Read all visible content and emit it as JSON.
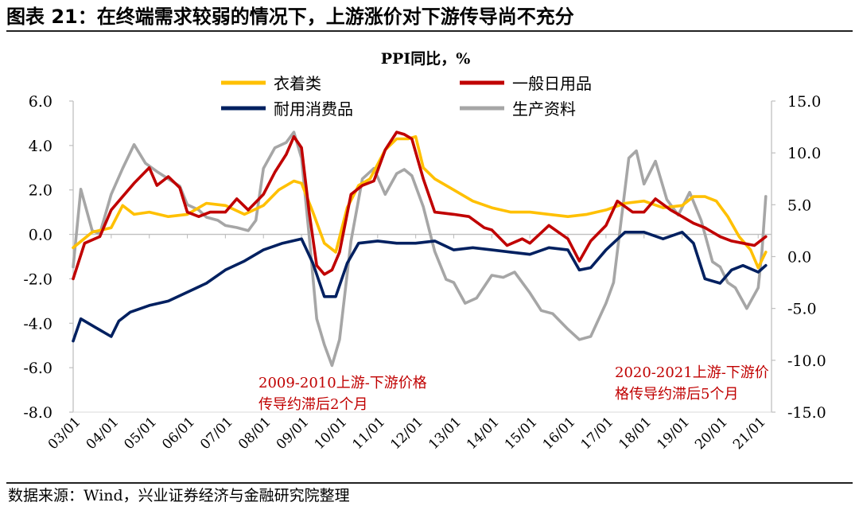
{
  "header": {
    "title": "图表 21：在终端需求较弱的情况下，上游涨价对下游传导尚不充分"
  },
  "footer": {
    "source": "数据来源：Wind，兴业证券经济与金融研究院整理"
  },
  "chart_data": {
    "type": "line",
    "title": "PPI同比，%",
    "x_ticks": [
      "03/01",
      "04/01",
      "05/01",
      "06/01",
      "07/01",
      "08/01",
      "09/01",
      "10/01",
      "11/01",
      "12/01",
      "13/01",
      "14/01",
      "15/01",
      "16/01",
      "17/01",
      "18/01",
      "19/01",
      "20/01",
      "21/01"
    ],
    "y_left": {
      "ticks": [
        "6.0",
        "4.0",
        "2.0",
        "0.0",
        "-2.0",
        "-4.0",
        "-6.0",
        "-8.0"
      ],
      "ylim": [
        -8,
        6
      ]
    },
    "y_right": {
      "ticks": [
        "15.0",
        "10.0",
        "5.0",
        "0.0",
        "-5.0",
        "-10.0",
        "-15.0"
      ],
      "ylim": [
        -15,
        15
      ]
    },
    "legend": [
      {
        "name": "衣着类",
        "color": "#FFC000"
      },
      {
        "name": "一般日用品",
        "color": "#C00000"
      },
      {
        "name": "耐用消费品",
        "color": "#002060"
      },
      {
        "name": "生产资料",
        "color": "#A6A6A6"
      }
    ],
    "annotations": [
      {
        "lines": [
          "2009-2010上游-下游价格",
          "传导约滞后2个月"
        ],
        "color": "#C00000"
      },
      {
        "lines": [
          "2020-2021上游-下游价",
          "格传导约滞后5个月"
        ],
        "color": "#C00000"
      }
    ],
    "series": [
      {
        "name": "衣着类",
        "axis": "left",
        "color": "#FFC000",
        "x": [
          2003.0,
          2003.5,
          2004.0,
          2004.3,
          2004.6,
          2005.0,
          2005.5,
          2006.0,
          2006.5,
          2007.0,
          2007.5,
          2008.0,
          2008.4,
          2008.8,
          2009.0,
          2009.3,
          2009.6,
          2009.9,
          2010.2,
          2010.5,
          2010.8,
          2011.2,
          2011.5,
          2011.8,
          2012.0,
          2012.2,
          2012.5,
          2013.0,
          2013.5,
          2014.0,
          2014.5,
          2015.0,
          2015.5,
          2016.0,
          2016.5,
          2017.0,
          2017.5,
          2018.0,
          2018.5,
          2019.0,
          2019.3,
          2019.6,
          2019.9,
          2020.2,
          2020.5,
          2020.8,
          2021.0,
          2021.2
        ],
        "y": [
          -0.6,
          0.1,
          0.3,
          1.3,
          0.9,
          1.0,
          0.8,
          0.9,
          1.4,
          1.3,
          0.9,
          1.3,
          2.0,
          2.4,
          2.3,
          1.0,
          -0.4,
          -0.8,
          1.2,
          2.2,
          2.5,
          3.8,
          4.3,
          4.3,
          4.4,
          3.0,
          2.5,
          2.0,
          1.5,
          1.2,
          1.0,
          1.0,
          0.9,
          0.8,
          0.9,
          1.1,
          1.4,
          1.5,
          1.2,
          1.3,
          1.7,
          1.7,
          1.5,
          0.8,
          -0.1,
          -0.7,
          -1.5,
          -0.8
        ]
      },
      {
        "name": "一般日用品",
        "axis": "left",
        "color": "#C00000",
        "x": [
          2003.0,
          2003.3,
          2003.7,
          2004.0,
          2004.3,
          2004.6,
          2005.0,
          2005.2,
          2005.5,
          2005.8,
          2006.0,
          2006.3,
          2006.6,
          2007.0,
          2007.3,
          2007.6,
          2008.0,
          2008.3,
          2008.6,
          2008.8,
          2009.0,
          2009.2,
          2009.4,
          2009.6,
          2009.8,
          2010.0,
          2010.3,
          2010.6,
          2010.9,
          2011.2,
          2011.5,
          2011.7,
          2011.9,
          2012.2,
          2012.5,
          2013.0,
          2013.4,
          2013.8,
          2014.0,
          2014.4,
          2014.8,
          2015.0,
          2015.5,
          2016.0,
          2016.3,
          2016.6,
          2017.0,
          2017.3,
          2017.7,
          2018.0,
          2018.3,
          2018.7,
          2019.0,
          2019.3,
          2019.6,
          2020.0,
          2020.3,
          2020.6,
          2020.9,
          2021.2
        ],
        "y": [
          -2.0,
          -0.4,
          -0.1,
          1.1,
          1.7,
          2.3,
          3.0,
          2.2,
          2.6,
          2.1,
          1.0,
          0.8,
          1.0,
          1.0,
          1.6,
          1.1,
          1.8,
          2.8,
          3.6,
          4.4,
          3.9,
          1.0,
          -1.4,
          -1.8,
          -1.6,
          -0.8,
          1.8,
          2.2,
          2.4,
          3.8,
          4.6,
          4.5,
          4.3,
          2.5,
          1.0,
          0.9,
          0.8,
          0.3,
          0.2,
          -0.5,
          -0.2,
          -0.4,
          0.4,
          -0.2,
          -1.2,
          -0.3,
          0.4,
          1.5,
          1.0,
          1.0,
          1.6,
          1.1,
          0.8,
          0.5,
          0.3,
          -0.1,
          -0.3,
          -0.4,
          -0.5,
          -0.1
        ]
      },
      {
        "name": "耐用消费品",
        "axis": "left",
        "color": "#002060",
        "x": [
          2003.0,
          2003.2,
          2003.6,
          2004.0,
          2004.2,
          2004.5,
          2005.0,
          2005.5,
          2006.0,
          2006.5,
          2007.0,
          2007.5,
          2008.0,
          2008.5,
          2009.0,
          2009.3,
          2009.6,
          2009.9,
          2010.2,
          2010.5,
          2011.0,
          2011.5,
          2012.0,
          2012.5,
          2013.0,
          2013.5,
          2014.0,
          2014.5,
          2015.0,
          2015.5,
          2016.0,
          2016.3,
          2016.6,
          2017.0,
          2017.5,
          2018.0,
          2018.5,
          2019.0,
          2019.3,
          2019.6,
          2020.0,
          2020.3,
          2020.6,
          2021.0,
          2021.2
        ],
        "y": [
          -4.8,
          -3.8,
          -4.2,
          -4.6,
          -3.9,
          -3.5,
          -3.2,
          -3.0,
          -2.6,
          -2.2,
          -1.6,
          -1.2,
          -0.7,
          -0.4,
          -0.2,
          -1.3,
          -2.8,
          -2.8,
          -1.3,
          -0.4,
          -0.3,
          -0.4,
          -0.4,
          -0.3,
          -0.7,
          -0.6,
          -0.7,
          -0.8,
          -0.9,
          -0.6,
          -0.7,
          -1.6,
          -1.5,
          -0.7,
          0.1,
          0.1,
          -0.2,
          0.1,
          -0.4,
          -2.0,
          -2.2,
          -1.6,
          -1.4,
          -1.7,
          -1.4
        ]
      },
      {
        "name": "生产资料",
        "axis": "right",
        "color": "#A6A6A6",
        "x": [
          2003.0,
          2003.2,
          2003.5,
          2003.7,
          2004.0,
          2004.3,
          2004.6,
          2004.9,
          2005.2,
          2005.5,
          2005.8,
          2006.0,
          2006.3,
          2006.5,
          2006.8,
          2007.0,
          2007.3,
          2007.6,
          2007.8,
          2008.0,
          2008.3,
          2008.6,
          2008.8,
          2009.0,
          2009.2,
          2009.4,
          2009.6,
          2009.8,
          2010.0,
          2010.3,
          2010.6,
          2010.9,
          2011.2,
          2011.5,
          2011.7,
          2011.9,
          2012.2,
          2012.5,
          2012.8,
          2013.0,
          2013.3,
          2013.6,
          2014.0,
          2014.3,
          2014.6,
          2015.0,
          2015.3,
          2015.6,
          2016.0,
          2016.3,
          2016.6,
          2017.0,
          2017.2,
          2017.4,
          2017.6,
          2017.8,
          2018.0,
          2018.3,
          2018.6,
          2018.9,
          2019.2,
          2019.5,
          2019.8,
          2020.0,
          2020.2,
          2020.4,
          2020.7,
          2021.0,
          2021.1,
          2021.2
        ],
        "y": [
          -1.0,
          6.5,
          2.5,
          2.2,
          6.0,
          8.5,
          10.8,
          9.0,
          8.2,
          7.5,
          6.8,
          5.0,
          4.5,
          3.8,
          3.5,
          3.0,
          2.8,
          2.5,
          3.5,
          8.5,
          10.5,
          11.0,
          12.0,
          9.5,
          2.0,
          -6.0,
          -8.5,
          -10.5,
          -8.0,
          1.5,
          7.5,
          8.5,
          6.0,
          8.0,
          8.4,
          7.8,
          4.8,
          0.5,
          -2.2,
          -2.5,
          -4.5,
          -4.0,
          -1.8,
          -2.0,
          -1.5,
          -3.5,
          -5.2,
          -5.5,
          -7.0,
          -8.0,
          -7.7,
          -4.5,
          -2.5,
          3.5,
          9.5,
          10.2,
          7.0,
          9.2,
          5.5,
          4.0,
          6.2,
          3.5,
          -0.5,
          -1.0,
          -2.5,
          -3.0,
          -5.0,
          -3.0,
          0.5,
          5.8
        ]
      }
    ]
  }
}
